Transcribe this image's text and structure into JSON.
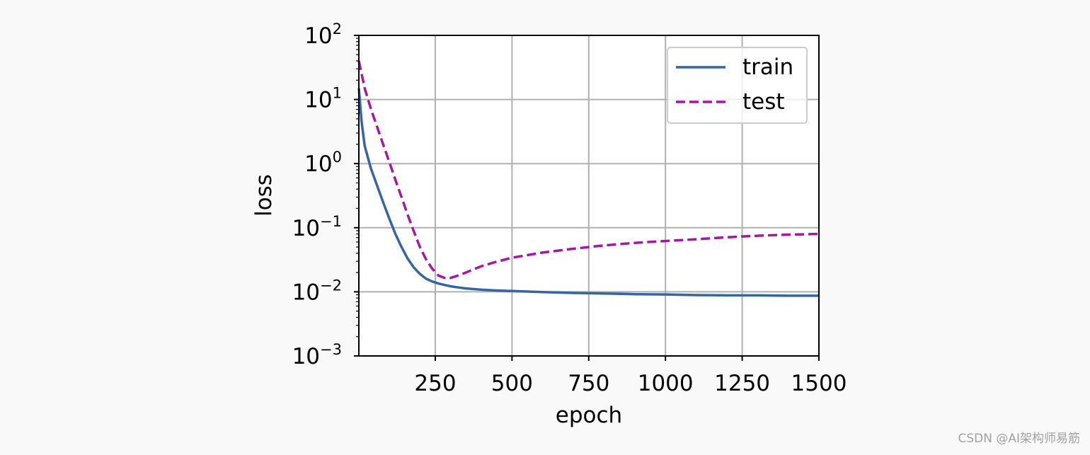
{
  "chart_data": {
    "type": "line",
    "title": "",
    "xlabel": "epoch",
    "ylabel": "loss",
    "xlim": [
      1,
      1500
    ],
    "ylim": [
      0.001,
      100
    ],
    "yscale": "log",
    "grid": true,
    "legend_position": "top-right",
    "x_ticks": [
      250,
      500,
      750,
      1000,
      1250,
      1500
    ],
    "x_tick_labels": [
      "250",
      "500",
      "750",
      "1000",
      "1250",
      "1500"
    ],
    "y_ticks": [
      0.001,
      0.01,
      0.1,
      1,
      10,
      100
    ],
    "y_tick_labels": [
      {
        "base": "10",
        "exp": "−3"
      },
      {
        "base": "10",
        "exp": "−2"
      },
      {
        "base": "10",
        "exp": "−1"
      },
      {
        "base": "10",
        "exp": "0"
      },
      {
        "base": "10",
        "exp": "1"
      },
      {
        "base": "10",
        "exp": "2"
      }
    ],
    "series": [
      {
        "name": "train",
        "color": "#3465a4",
        "style": "solid",
        "x": [
          1,
          10,
          20,
          40,
          60,
          80,
          100,
          120,
          140,
          160,
          180,
          200,
          220,
          240,
          260,
          280,
          300,
          325,
          350,
          400,
          450,
          500,
          600,
          700,
          800,
          900,
          1000,
          1100,
          1200,
          1300,
          1400,
          1500
        ],
        "y": [
          15,
          4.5,
          1.9,
          0.85,
          0.46,
          0.25,
          0.14,
          0.08,
          0.05,
          0.033,
          0.024,
          0.019,
          0.016,
          0.0145,
          0.0135,
          0.0128,
          0.0122,
          0.0117,
          0.0113,
          0.0108,
          0.0105,
          0.0103,
          0.0099,
          0.0096,
          0.0094,
          0.0092,
          0.0091,
          0.0089,
          0.0088,
          0.0088,
          0.0087,
          0.0087
        ]
      },
      {
        "name": "test",
        "color": "#a617a6",
        "style": "dashed",
        "x": [
          1,
          20,
          40,
          60,
          80,
          100,
          120,
          140,
          160,
          180,
          200,
          220,
          240,
          260,
          280,
          300,
          325,
          350,
          400,
          450,
          500,
          600,
          700,
          800,
          900,
          1000,
          1100,
          1200,
          1300,
          1400,
          1500
        ],
        "y": [
          40,
          15,
          7.2,
          3.8,
          2.0,
          1.07,
          0.56,
          0.3,
          0.16,
          0.088,
          0.05,
          0.032,
          0.023,
          0.018,
          0.0165,
          0.0165,
          0.018,
          0.02,
          0.025,
          0.0295,
          0.034,
          0.041,
          0.047,
          0.053,
          0.058,
          0.062,
          0.066,
          0.071,
          0.075,
          0.078,
          0.08
        ]
      }
    ]
  },
  "watermark": "CSDN @AI架构师易筋"
}
